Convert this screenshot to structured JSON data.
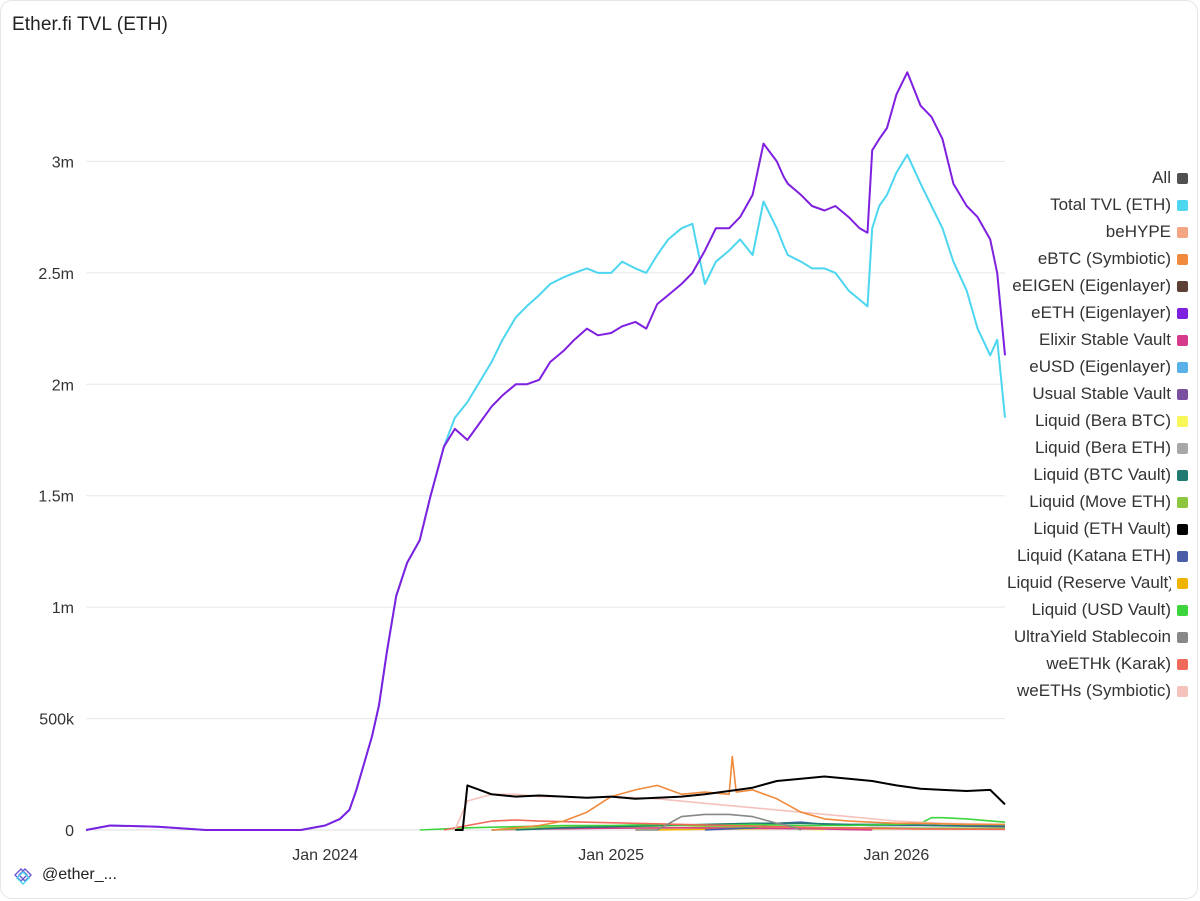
{
  "header": {
    "title": "Ether.fi TVL (ETH)"
  },
  "footer": {
    "handle": "@ether_..."
  },
  "chart_data": {
    "type": "line",
    "title": "Ether.fi TVL (ETH)",
    "xlabel": "",
    "ylabel": "",
    "x_range": [
      "2023-03-01",
      "2026-05-20"
    ],
    "ylim": [
      0,
      3500000
    ],
    "y_ticks": [
      0,
      500000,
      1000000,
      1500000,
      2000000,
      2500000,
      3000000
    ],
    "y_tick_labels": [
      "0",
      "500k",
      "1m",
      "1.5m",
      "2m",
      "2.5m",
      "3m"
    ],
    "x_ticks": [
      "2024-01-01",
      "2025-01-01",
      "2026-01-01"
    ],
    "x_tick_labels": [
      "Jan 2024",
      "Jan 2025",
      "Jan 2026"
    ],
    "grid": true,
    "legend_position": "right",
    "legend": [
      {
        "label": "All",
        "color": "#505050"
      },
      {
        "label": "Total TVL (ETH)",
        "color": "#4dd6f0"
      },
      {
        "label": "beHYPE",
        "color": "#f4a582"
      },
      {
        "label": "eBTC (Symbiotic)",
        "color": "#f08a3c"
      },
      {
        "label": "eEIGEN (Eigenlayer)",
        "color": "#5c4033"
      },
      {
        "label": "eETH (Eigenlayer)",
        "color": "#7f1fe0"
      },
      {
        "label": "Elixir Stable Vault",
        "color": "#d63a8a"
      },
      {
        "label": "eUSD (Eigenlayer)",
        "color": "#5ab0e8"
      },
      {
        "label": "Usual Stable Vault",
        "color": "#7b4fa0"
      },
      {
        "label": "Liquid (Bera BTC)",
        "color": "#f7f75a"
      },
      {
        "label": "Liquid (Bera ETH)",
        "color": "#a8a8a8"
      },
      {
        "label": "Liquid (BTC Vault)",
        "color": "#1f7a72"
      },
      {
        "label": "Liquid (Move ETH)",
        "color": "#8cc63f"
      },
      {
        "label": "Liquid (ETH Vault)",
        "color": "#000000"
      },
      {
        "label": "Liquid (Katana ETH)",
        "color": "#4a5ea8"
      },
      {
        "label": "Liquid (Reserve Vault)",
        "color": "#f0b400"
      },
      {
        "label": "Liquid (USD Vault)",
        "color": "#3ed43e"
      },
      {
        "label": "UltraYield Stablecoin",
        "color": "#888888"
      },
      {
        "label": "weETHk (Karak)",
        "color": "#ef6a5a"
      },
      {
        "label": "weETHs (Symbiotic)",
        "color": "#f5c2bc"
      }
    ],
    "series": [
      {
        "name": "eETH (Eigenlayer)",
        "color": "#7f1fe0",
        "x": [
          "2023-03-01",
          "2023-04-01",
          "2023-06-01",
          "2023-08-01",
          "2023-10-01",
          "2023-11-01",
          "2023-12-01",
          "2024-01-01",
          "2024-01-20",
          "2024-02-01",
          "2024-02-10",
          "2024-02-20",
          "2024-03-01",
          "2024-03-10",
          "2024-03-20",
          "2024-04-01",
          "2024-04-15",
          "2024-05-01",
          "2024-05-15",
          "2024-06-01",
          "2024-06-15",
          "2024-07-01",
          "2024-08-01",
          "2024-08-15",
          "2024-09-01",
          "2024-09-15",
          "2024-10-01",
          "2024-10-15",
          "2024-11-01",
          "2024-11-15",
          "2024-12-01",
          "2024-12-15",
          "2025-01-01",
          "2025-01-15",
          "2025-02-01",
          "2025-02-15",
          "2025-03-01",
          "2025-03-15",
          "2025-04-01",
          "2025-04-15",
          "2025-05-01",
          "2025-05-15",
          "2025-06-01",
          "2025-06-15",
          "2025-07-01",
          "2025-07-15",
          "2025-08-01",
          "2025-08-10",
          "2025-08-15",
          "2025-09-01",
          "2025-09-15",
          "2025-10-01",
          "2025-10-15",
          "2025-11-01",
          "2025-11-15",
          "2025-11-25",
          "2025-12-01",
          "2025-12-10",
          "2025-12-20",
          "2026-01-01",
          "2026-01-15",
          "2026-02-01",
          "2026-02-15",
          "2026-03-01",
          "2026-03-15",
          "2026-04-01",
          "2026-04-15",
          "2026-05-01",
          "2026-05-10",
          "2026-05-20"
        ],
        "values": [
          0,
          20000,
          15000,
          0,
          0,
          0,
          0,
          20000,
          50000,
          90000,
          180000,
          300000,
          420000,
          560000,
          800000,
          1050000,
          1200000,
          1300000,
          1500000,
          1720000,
          1800000,
          1750000,
          1900000,
          1950000,
          2000000,
          2000000,
          2020000,
          2100000,
          2150000,
          2200000,
          2250000,
          2220000,
          2230000,
          2260000,
          2280000,
          2250000,
          2360000,
          2400000,
          2450000,
          2500000,
          2600000,
          2700000,
          2700000,
          2750000,
          2850000,
          3080000,
          3000000,
          2930000,
          2900000,
          2850000,
          2800000,
          2780000,
          2800000,
          2750000,
          2700000,
          2680000,
          3050000,
          3100000,
          3150000,
          3300000,
          3400000,
          3250000,
          3200000,
          3100000,
          2900000,
          2800000,
          2750000,
          2650000,
          2500000,
          2130000
        ]
      },
      {
        "name": "Total TVL (ETH)",
        "color": "#4dd6f0",
        "x": [
          "2023-03-01",
          "2023-04-01",
          "2023-06-01",
          "2023-08-01",
          "2023-10-01",
          "2023-11-01",
          "2023-12-01",
          "2024-01-01",
          "2024-01-20",
          "2024-02-01",
          "2024-02-10",
          "2024-02-20",
          "2024-03-01",
          "2024-03-10",
          "2024-03-20",
          "2024-04-01",
          "2024-04-15",
          "2024-05-01",
          "2024-05-15",
          "2024-06-01",
          "2024-06-15",
          "2024-07-01",
          "2024-08-01",
          "2024-08-15",
          "2024-09-01",
          "2024-09-15",
          "2024-10-01",
          "2024-10-15",
          "2024-11-01",
          "2024-11-15",
          "2024-12-01",
          "2024-12-15",
          "2025-01-01",
          "2025-01-15",
          "2025-02-01",
          "2025-02-15",
          "2025-03-01",
          "2025-03-15",
          "2025-04-01",
          "2025-04-15",
          "2025-05-01",
          "2025-05-15",
          "2025-06-01",
          "2025-06-15",
          "2025-07-01",
          "2025-07-15",
          "2025-08-01",
          "2025-08-10",
          "2025-08-15",
          "2025-09-01",
          "2025-09-15",
          "2025-10-01",
          "2025-10-15",
          "2025-11-01",
          "2025-11-15",
          "2025-11-25",
          "2025-12-01",
          "2025-12-10",
          "2025-12-20",
          "2026-01-01",
          "2026-01-15",
          "2026-02-01",
          "2026-02-15",
          "2026-03-01",
          "2026-03-15",
          "2026-04-01",
          "2026-04-15",
          "2026-05-01",
          "2026-05-10",
          "2026-05-20"
        ],
        "values": [
          0,
          20000,
          15000,
          0,
          0,
          0,
          0,
          20000,
          50000,
          90000,
          180000,
          300000,
          420000,
          560000,
          800000,
          1050000,
          1200000,
          1300000,
          1500000,
          1720000,
          1850000,
          1920000,
          2100000,
          2200000,
          2300000,
          2350000,
          2400000,
          2450000,
          2480000,
          2500000,
          2520000,
          2500000,
          2500000,
          2550000,
          2520000,
          2500000,
          2580000,
          2650000,
          2700000,
          2720000,
          2450000,
          2550000,
          2600000,
          2650000,
          2580000,
          2820000,
          2700000,
          2620000,
          2580000,
          2550000,
          2520000,
          2520000,
          2500000,
          2420000,
          2380000,
          2350000,
          2700000,
          2800000,
          2850000,
          2950000,
          3030000,
          2900000,
          2800000,
          2700000,
          2550000,
          2420000,
          2250000,
          2130000,
          2200000,
          1850000
        ]
      },
      {
        "name": "Liquid (ETH Vault)",
        "color": "#000000",
        "x": [
          "2024-06-15",
          "2024-06-25",
          "2024-07-01",
          "2024-08-01",
          "2024-09-01",
          "2024-10-01",
          "2024-11-01",
          "2024-12-01",
          "2025-01-01",
          "2025-02-01",
          "2025-03-01",
          "2025-04-01",
          "2025-05-01",
          "2025-06-01",
          "2025-07-01",
          "2025-08-01",
          "2025-09-01",
          "2025-10-01",
          "2025-11-01",
          "2025-12-01",
          "2026-01-01",
          "2026-02-01",
          "2026-03-01",
          "2026-04-01",
          "2026-05-01",
          "2026-05-20"
        ],
        "values": [
          0,
          0,
          200000,
          160000,
          150000,
          155000,
          150000,
          145000,
          150000,
          140000,
          145000,
          150000,
          160000,
          175000,
          190000,
          220000,
          230000,
          240000,
          230000,
          220000,
          200000,
          185000,
          180000,
          175000,
          180000,
          115000
        ]
      },
      {
        "name": "eBTC (Symbiotic)",
        "color": "#f08a3c",
        "x": [
          "2024-08-01",
          "2024-09-01",
          "2024-10-01",
          "2024-11-01",
          "2024-12-01",
          "2025-01-01",
          "2025-02-01",
          "2025-03-01",
          "2025-04-01",
          "2025-05-01",
          "2025-06-01",
          "2025-06-05",
          "2025-06-10",
          "2025-07-01",
          "2025-08-01",
          "2025-09-01",
          "2025-10-01",
          "2025-11-01",
          "2025-12-01",
          "2026-01-01",
          "2026-02-01",
          "2026-03-01",
          "2026-04-01",
          "2026-05-20"
        ],
        "values": [
          0,
          10000,
          20000,
          40000,
          80000,
          150000,
          180000,
          200000,
          160000,
          170000,
          160000,
          330000,
          170000,
          180000,
          140000,
          80000,
          50000,
          40000,
          35000,
          30000,
          30000,
          28000,
          25000,
          25000
        ]
      },
      {
        "name": "weETHs (Symbiotic)",
        "color": "#f5c2bc",
        "x": [
          "2024-06-15",
          "2024-07-01",
          "2024-08-01",
          "2024-09-01",
          "2024-10-01",
          "2024-11-01",
          "2024-12-01",
          "2025-01-01",
          "2025-03-01",
          "2025-05-01",
          "2025-07-01",
          "2025-09-01",
          "2025-11-01",
          "2026-01-01",
          "2026-03-01",
          "2026-05-20"
        ],
        "values": [
          0,
          130000,
          160000,
          160000,
          150000,
          150000,
          145000,
          150000,
          140000,
          120000,
          100000,
          80000,
          60000,
          40000,
          30000,
          25000
        ]
      },
      {
        "name": "UltraYield Stablecoin",
        "color": "#888888",
        "x": [
          "2025-02-01",
          "2025-03-01",
          "2025-04-01",
          "2025-05-01",
          "2025-06-01",
          "2025-07-01",
          "2025-08-01",
          "2025-08-15",
          "2025-09-01"
        ],
        "values": [
          0,
          0,
          60000,
          70000,
          70000,
          60000,
          30000,
          20000,
          0
        ]
      },
      {
        "name": "weETHk (Karak)",
        "color": "#ef6a5a",
        "x": [
          "2024-06-01",
          "2024-07-01",
          "2024-08-01",
          "2024-09-01",
          "2024-10-01",
          "2024-12-01",
          "2025-02-01",
          "2025-04-01",
          "2025-06-01",
          "2025-08-01",
          "2025-10-01",
          "2025-12-01",
          "2026-02-01",
          "2026-05-20"
        ],
        "values": [
          0,
          20000,
          40000,
          45000,
          40000,
          35000,
          30000,
          25000,
          20000,
          15000,
          10000,
          8000,
          5000,
          3000
        ]
      },
      {
        "name": "Liquid (USD Vault)",
        "color": "#3ed43e",
        "x": [
          "2024-05-01",
          "2024-07-01",
          "2024-09-01",
          "2024-11-01",
          "2025-01-01",
          "2025-03-01",
          "2025-05-01",
          "2025-07-01",
          "2025-09-01",
          "2025-11-01",
          "2026-01-01",
          "2026-02-01",
          "2026-02-15",
          "2026-03-01",
          "2026-04-01",
          "2026-05-20"
        ],
        "values": [
          0,
          10000,
          15000,
          20000,
          20000,
          25000,
          20000,
          25000,
          20000,
          20000,
          25000,
          30000,
          55000,
          55000,
          50000,
          35000
        ]
      },
      {
        "name": "Liquid (BTC Vault)",
        "color": "#1f7a72",
        "x": [
          "2024-09-01",
          "2024-11-01",
          "2025-01-01",
          "2025-03-01",
          "2025-05-01",
          "2025-07-01",
          "2025-09-01",
          "2025-11-01",
          "2026-01-01",
          "2026-03-01",
          "2026-05-20"
        ],
        "values": [
          0,
          10000,
          15000,
          20000,
          25000,
          30000,
          30000,
          25000,
          25000,
          20000,
          20000
        ]
      },
      {
        "name": "Liquid (Move ETH)",
        "color": "#8cc63f",
        "x": [
          "2024-08-01",
          "2024-10-01",
          "2024-12-01",
          "2025-02-01",
          "2025-04-01",
          "2025-06-01",
          "2025-08-01",
          "2025-10-01",
          "2025-12-01",
          "2026-02-01",
          "2026-05-20"
        ],
        "values": [
          0,
          10000,
          15000,
          15000,
          20000,
          15000,
          15000,
          10000,
          10000,
          8000,
          8000
        ]
      },
      {
        "name": "Liquid (Katana ETH)",
        "color": "#4a5ea8",
        "x": [
          "2025-05-01",
          "2025-07-01",
          "2025-08-01",
          "2025-09-01",
          "2025-10-01",
          "2025-12-01",
          "2026-02-01",
          "2026-05-20"
        ],
        "values": [
          0,
          10000,
          30000,
          35000,
          25000,
          20000,
          20000,
          15000
        ]
      },
      {
        "name": "Elixir Stable Vault",
        "color": "#d63a8a",
        "x": [
          "2024-08-01",
          "2024-10-01",
          "2025-01-01",
          "2025-04-01",
          "2025-07-01",
          "2025-10-01",
          "2025-11-01",
          "2025-12-01"
        ],
        "values": [
          0,
          5000,
          8000,
          10000,
          8000,
          5000,
          2000,
          0
        ]
      },
      {
        "name": "Liquid (Reserve Vault)",
        "color": "#f0b400",
        "x": [
          "2025-03-01",
          "2025-06-01",
          "2025-09-01",
          "2025-12-01",
          "2026-03-01",
          "2026-05-20"
        ],
        "values": [
          0,
          5000,
          8000,
          6000,
          5000,
          4000
        ]
      },
      {
        "name": "Liquid (Bera BTC)",
        "color": "#f7f75a",
        "x": [
          "2025-02-01",
          "2025-04-01",
          "2025-06-01",
          "2025-08-01",
          "2025-10-01"
        ],
        "values": [
          0,
          10000,
          15000,
          10000,
          0
        ]
      }
    ]
  }
}
